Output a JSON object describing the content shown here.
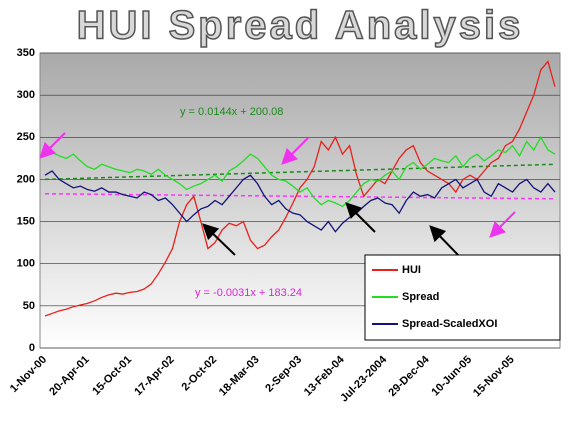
{
  "chart_data": {
    "type": "line",
    "title": "HUI Spread Analysis",
    "categories": [
      "1-Nov-00",
      null,
      null,
      null,
      null,
      null,
      "20-Apr-01",
      null,
      null,
      null,
      null,
      null,
      "15-Oct-01",
      null,
      null,
      null,
      null,
      null,
      "17-Apr-02",
      null,
      null,
      null,
      null,
      null,
      "2-Oct-02",
      null,
      null,
      null,
      null,
      null,
      "18-Mar-03",
      null,
      null,
      null,
      null,
      null,
      "2-Sep-03",
      null,
      null,
      null,
      null,
      null,
      "13-Feb-04",
      null,
      null,
      null,
      null,
      null,
      "Jul-23-2004",
      null,
      null,
      null,
      null,
      null,
      "29-Dec-04",
      null,
      null,
      null,
      null,
      null,
      "10-Jun-05",
      null,
      null,
      null,
      null,
      null,
      "15-Nov-05",
      null,
      null,
      null,
      null,
      null,
      null
    ],
    "series": [
      {
        "name": "HUI",
        "color": "#e8201c",
        "values": [
          38,
          41,
          44,
          46,
          49,
          51,
          53,
          56,
          60,
          63,
          65,
          64,
          66,
          67,
          70,
          76,
          88,
          102,
          118,
          150,
          170,
          180,
          150,
          118,
          125,
          140,
          148,
          145,
          150,
          128,
          118,
          122,
          132,
          140,
          155,
          172,
          190,
          200,
          215,
          245,
          235,
          250,
          230,
          240,
          205,
          180,
          190,
          200,
          195,
          210,
          225,
          235,
          240,
          220,
          210,
          205,
          200,
          195,
          185,
          200,
          205,
          200,
          210,
          220,
          225,
          240,
          245,
          260,
          280,
          300,
          330,
          340,
          310
        ]
      },
      {
        "name": "Spread",
        "color": "#22dd22",
        "values": [
          230,
          232,
          228,
          225,
          230,
          222,
          215,
          212,
          218,
          215,
          212,
          210,
          208,
          212,
          210,
          206,
          212,
          205,
          200,
          195,
          188,
          192,
          195,
          200,
          205,
          198,
          210,
          215,
          222,
          230,
          225,
          215,
          205,
          200,
          198,
          192,
          185,
          190,
          178,
          170,
          175,
          172,
          168,
          175,
          185,
          195,
          200,
          198,
          205,
          210,
          200,
          215,
          220,
          212,
          218,
          225,
          222,
          220,
          228,
          215,
          225,
          230,
          222,
          228,
          235,
          232,
          240,
          228,
          245,
          235,
          250,
          235,
          230
        ]
      },
      {
        "name": "Spread-ScaledXOI",
        "color": "#12127a",
        "values": [
          205,
          210,
          200,
          195,
          190,
          192,
          188,
          186,
          190,
          185,
          185,
          182,
          180,
          178,
          185,
          182,
          175,
          178,
          170,
          160,
          150,
          158,
          165,
          168,
          175,
          170,
          180,
          190,
          200,
          205,
          195,
          180,
          170,
          175,
          165,
          160,
          158,
          150,
          145,
          140,
          150,
          138,
          148,
          155,
          160,
          168,
          175,
          178,
          172,
          170,
          160,
          175,
          185,
          180,
          182,
          178,
          190,
          195,
          200,
          190,
          195,
          200,
          185,
          180,
          195,
          190,
          185,
          195,
          200,
          190,
          185,
          195,
          185
        ]
      }
    ],
    "trendlines": [
      {
        "color": "#1a8a1a",
        "values": [
          200,
          218
        ]
      },
      {
        "color": "#ff33ff",
        "values": [
          183,
          177
        ]
      }
    ],
    "annotations": [
      {
        "text": "y = 0.0144x + 200.08",
        "color": "#1a8a1a"
      },
      {
        "text": "y = -0.0031x + 183.24",
        "color": "#dd22dd"
      }
    ],
    "ylim": [
      0,
      350
    ],
    "yticks": [
      0,
      50,
      100,
      150,
      200,
      250,
      300,
      350
    ],
    "grid": true
  }
}
